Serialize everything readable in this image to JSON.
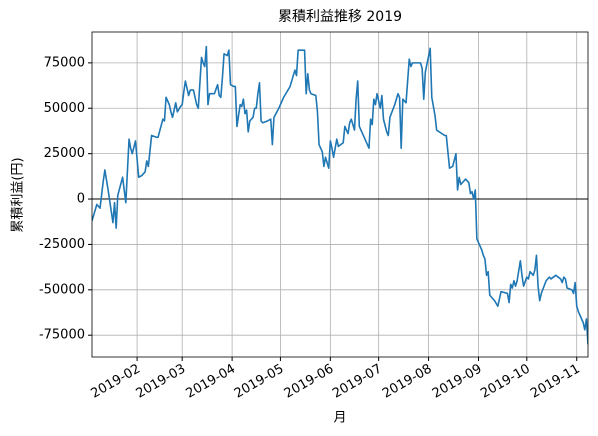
{
  "chart_data": {
    "type": "line",
    "title": "累積利益推移  2019",
    "xlabel": "月",
    "ylabel": "累積利益(円)",
    "x": [
      4,
      7,
      9,
      11,
      12,
      14,
      17,
      18,
      19,
      20,
      23,
      25,
      27,
      28,
      29,
      31,
      33,
      35,
      37,
      38,
      39,
      41,
      44,
      45,
      48,
      49,
      50,
      52,
      53,
      54,
      56,
      57,
      59,
      60,
      61,
      62,
      64,
      65,
      67,
      69,
      70,
      72,
      73,
      74,
      75,
      76,
      77,
      80,
      82,
      83,
      84,
      85,
      86,
      88,
      89,
      90,
      92,
      93,
      94,
      96,
      97,
      98,
      99,
      100,
      101,
      102,
      104,
      105,
      106,
      107,
      108,
      109,
      110,
      113,
      115,
      116,
      117,
      120,
      123,
      127,
      129,
      130,
      131,
      132,
      136,
      137,
      138,
      139,
      140,
      143,
      144,
      145,
      146,
      147,
      148,
      149,
      151,
      152,
      153,
      154,
      156,
      157,
      160,
      161,
      162,
      163,
      164,
      165,
      167,
      168,
      169,
      170,
      172,
      175,
      176,
      177,
      178,
      179,
      180,
      181,
      183,
      184,
      185,
      187,
      188,
      189,
      192,
      194,
      195,
      196,
      197,
      199,
      201,
      202,
      203,
      208,
      209,
      210,
      211,
      214,
      215,
      217,
      218,
      223,
      224,
      225,
      226,
      228,
      230,
      231,
      232,
      233,
      235,
      236,
      238,
      239,
      240,
      241,
      242,
      243,
      244,
      246,
      247,
      248,
      249,
      250,
      251,
      254,
      256,
      257,
      258,
      262,
      263,
      264,
      265,
      266,
      267,
      268,
      270,
      271,
      272,
      274,
      275,
      276,
      278,
      279,
      280,
      281,
      282,
      283,
      286,
      288,
      289,
      292,
      295,
      296,
      297,
      298,
      299,
      302,
      303,
      304,
      305,
      306,
      309,
      310,
      311,
      312
    ],
    "series": [
      {
        "name": "累積利益",
        "color": "#1f77b4",
        "values": [
          -12000,
          -3000,
          -5000,
          10000,
          16000,
          5000,
          -13000,
          -2000,
          -16000,
          2000,
          12000,
          -2000,
          33000,
          28000,
          25000,
          32000,
          12000,
          13000,
          15000,
          21000,
          18000,
          35000,
          34000,
          34000,
          44000,
          43000,
          56000,
          52000,
          48000,
          45000,
          53000,
          48000,
          51000,
          52000,
          59000,
          65000,
          57000,
          60000,
          60000,
          52000,
          50000,
          78000,
          75000,
          73000,
          84000,
          52000,
          58000,
          58000,
          63000,
          57000,
          56000,
          67000,
          80000,
          79000,
          82000,
          63000,
          62000,
          62000,
          40000,
          52000,
          51000,
          55000,
          47000,
          49000,
          37000,
          43000,
          45000,
          50000,
          50000,
          58000,
          64000,
          43000,
          42000,
          43000,
          44000,
          30000,
          45000,
          50000,
          56000,
          62000,
          68000,
          71000,
          68000,
          82000,
          82000,
          58000,
          69000,
          60000,
          58000,
          57000,
          48000,
          30000,
          28000,
          26000,
          18000,
          23000,
          17000,
          32000,
          28000,
          23000,
          33000,
          29000,
          31000,
          40000,
          38000,
          36000,
          42000,
          44000,
          38000,
          55000,
          65000,
          40000,
          36000,
          30000,
          28000,
          44000,
          41000,
          55000,
          52000,
          58000,
          50000,
          57000,
          44000,
          37000,
          35000,
          45000,
          52000,
          58000,
          56000,
          28000,
          55000,
          53000,
          77000,
          73000,
          75000,
          75000,
          72000,
          55000,
          70000,
          83000,
          56000,
          46000,
          38000,
          35000,
          35000,
          26000,
          17000,
          18000,
          25000,
          5000,
          12000,
          8000,
          10000,
          11000,
          9000,
          3000,
          4000,
          0,
          5000,
          -22000,
          -24000,
          -28000,
          -31000,
          -33000,
          -42000,
          -40000,
          -53000,
          -56000,
          -59000,
          -55000,
          -51000,
          -52000,
          -57000,
          -47000,
          -49000,
          -45000,
          -48000,
          -45000,
          -34000,
          -42000,
          -48000,
          -43000,
          -44000,
          -40000,
          -42000,
          -39000,
          -31000,
          -48000,
          -56000,
          -52000,
          -45000,
          -43000,
          -44000,
          -42000,
          -44000,
          -46000,
          -43000,
          -44000,
          -49000,
          -50000,
          -52000,
          -46000,
          -59000,
          -62000,
          -68000,
          -72000,
          -66000,
          -80000
        ]
      }
    ],
    "xlim": [
      4,
      312
    ],
    "xticks": [
      {
        "value": 32,
        "label": "2019-02"
      },
      {
        "value": 60,
        "label": "2019-03"
      },
      {
        "value": 91,
        "label": "2019-04"
      },
      {
        "value": 121,
        "label": "2019-05"
      },
      {
        "value": 152,
        "label": "2019-06"
      },
      {
        "value": 182,
        "label": "2019-07"
      },
      {
        "value": 213,
        "label": "2019-08"
      },
      {
        "value": 244,
        "label": "2019-09"
      },
      {
        "value": 274,
        "label": "2019-10"
      },
      {
        "value": 305,
        "label": "2019-11"
      }
    ],
    "ylim": [
      -87000,
      92000
    ],
    "yticks": [
      -75000,
      -50000,
      -25000,
      0,
      25000,
      50000,
      75000
    ],
    "grid": true,
    "hline": 0
  }
}
